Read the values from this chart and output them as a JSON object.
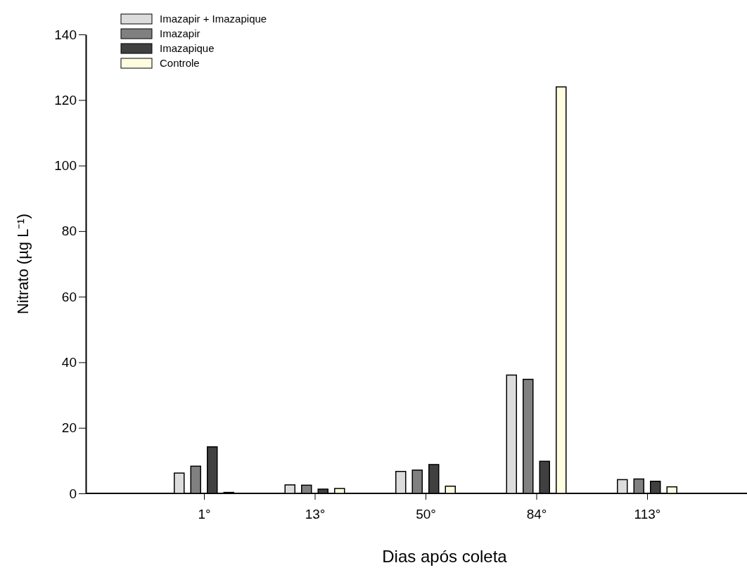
{
  "chart_data": {
    "type": "bar",
    "xlabel": "Dias após coleta",
    "ylabel": "Nitrato (µg L⁻¹)",
    "categories": [
      "1°",
      "13°",
      "50°",
      "84°",
      "113°"
    ],
    "series": [
      {
        "name": "Imazapir + Imazapique",
        "color": "#dcdcdc",
        "values": [
          6.2,
          2.6,
          6.7,
          36.1,
          4.2
        ]
      },
      {
        "name": "Imazapir",
        "color": "#808080",
        "values": [
          8.3,
          2.5,
          7.1,
          34.8,
          4.4
        ]
      },
      {
        "name": "Imazapique",
        "color": "#404040",
        "values": [
          14.2,
          1.3,
          8.8,
          9.8,
          3.7
        ]
      },
      {
        "name": "Controle",
        "color": "#fffde0",
        "values": [
          0.3,
          1.5,
          2.2,
          124,
          2.0
        ]
      }
    ],
    "ylim": [
      0,
      140
    ],
    "yticks": [
      0,
      20,
      40,
      60,
      80,
      100,
      120,
      140
    ],
    "legend": "top left"
  }
}
